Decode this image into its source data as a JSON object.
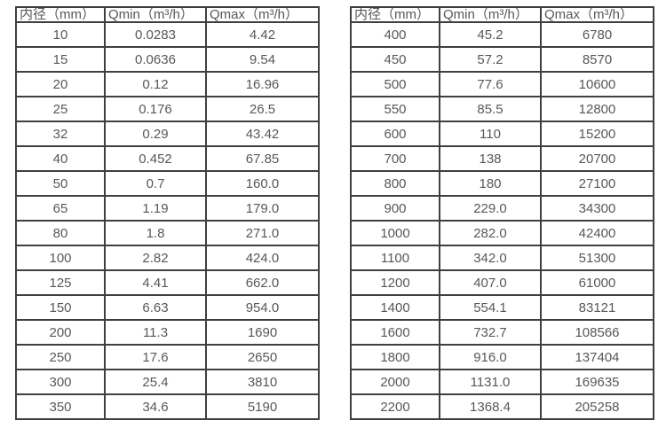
{
  "colors": {
    "background": "#ffffff",
    "border": "#3f3f40",
    "text": "#58585a"
  },
  "tables": [
    {
      "name": "flow-spec-table-small-diameters",
      "headers": [
        "内径（mm）",
        "Qmin（m³/h）",
        "Qmax（m³/h）"
      ],
      "rows": [
        [
          "10",
          "0.0283",
          "4.42"
        ],
        [
          "15",
          "0.0636",
          "9.54"
        ],
        [
          "20",
          "0.12",
          "16.96"
        ],
        [
          "25",
          "0.176",
          "26.5"
        ],
        [
          "32",
          "0.29",
          "43.42"
        ],
        [
          "40",
          "0.452",
          "67.85"
        ],
        [
          "50",
          "0.7",
          "160.0"
        ],
        [
          "65",
          "1.19",
          "179.0"
        ],
        [
          "80",
          "1.8",
          "271.0"
        ],
        [
          "100",
          "2.82",
          "424.0"
        ],
        [
          "125",
          "4.41",
          "662.0"
        ],
        [
          "150",
          "6.63",
          "954.0"
        ],
        [
          "200",
          "11.3",
          "1690"
        ],
        [
          "250",
          "17.6",
          "2650"
        ],
        [
          "300",
          "25.4",
          "3810"
        ],
        [
          "350",
          "34.6",
          "5190"
        ]
      ]
    },
    {
      "name": "flow-spec-table-large-diameters",
      "headers": [
        "内径（mm）",
        "Qmin（m³/h）",
        "Qmax（m³/h）"
      ],
      "rows": [
        [
          "400",
          "45.2",
          "6780"
        ],
        [
          "450",
          "57.2",
          "8570"
        ],
        [
          "500",
          "77.6",
          "10600"
        ],
        [
          "550",
          "85.5",
          "12800"
        ],
        [
          "600",
          "110",
          "15200"
        ],
        [
          "700",
          "138",
          "20700"
        ],
        [
          "800",
          "180",
          "27100"
        ],
        [
          "900",
          "229.0",
          "34300"
        ],
        [
          "1000",
          "282.0",
          "42400"
        ],
        [
          "1100",
          "342.0",
          "51300"
        ],
        [
          "1200",
          "407.0",
          "61000"
        ],
        [
          "1400",
          "554.1",
          "83121"
        ],
        [
          "1600",
          "732.7",
          "108566"
        ],
        [
          "1800",
          "916.0",
          "137404"
        ],
        [
          "2000",
          "1131.0",
          "169635"
        ],
        [
          "2200",
          "1368.4",
          "205258"
        ]
      ]
    }
  ]
}
